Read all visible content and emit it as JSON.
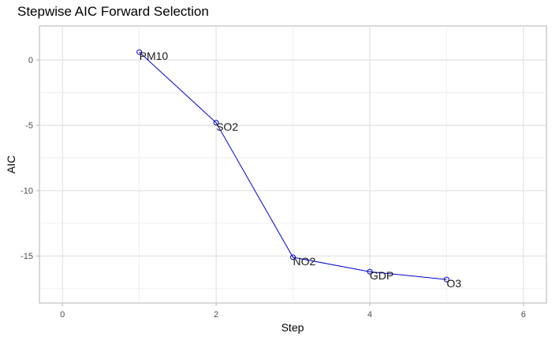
{
  "chart_data": {
    "type": "line",
    "title": "Stepwise AIC Forward Selection",
    "xlabel": "Step",
    "ylabel": "AIC",
    "xlim": [
      -0.3,
      6.3
    ],
    "ylim": [
      -18.6,
      2.6
    ],
    "x_ticks": [
      0,
      2,
      4,
      6
    ],
    "y_ticks": [
      0,
      -5,
      -10,
      -15
    ],
    "grid": true,
    "line_color": "#0000cd",
    "points": [
      {
        "x": 1,
        "y": 0.6,
        "label": "PM10"
      },
      {
        "x": 2,
        "y": -4.8,
        "label": "SO2"
      },
      {
        "x": 3,
        "y": -15.1,
        "label": "NO2"
      },
      {
        "x": 4,
        "y": -16.2,
        "label": "GDP"
      },
      {
        "x": 5,
        "y": -16.8,
        "label": "O3"
      }
    ]
  }
}
